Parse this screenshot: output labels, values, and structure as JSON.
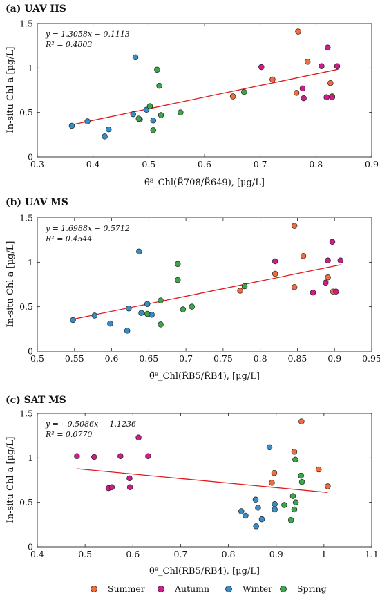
{
  "series_colors": {
    "Summer": "#f26b3a",
    "Autumn": "#d01c8b",
    "Winter": "#3a8cc6",
    "Spring": "#3aa84a"
  },
  "trendline_color": "#e0191b",
  "legend": [
    "Summer",
    "Autumn",
    "Winter",
    "Spring"
  ],
  "chart_data": [
    {
      "type": "scatter",
      "title": "(a) UAV HS",
      "ylabel": "In-situ Chl a [μg/L]",
      "xlabel": "θ̃⁸_Chl(R̃708/R̃649), [μg/L]",
      "xlim": [
        0.3,
        0.9
      ],
      "ylim": [
        0,
        1.5
      ],
      "xticks": [
        "0.3",
        "0.4",
        "0.5",
        "0.6",
        "0.7",
        "0.8",
        "0.9"
      ],
      "yticks": [
        "0",
        "0.5",
        "1",
        "1.5"
      ],
      "equation": "y = 1.3058x − 0.1113",
      "r2": "R² = 0.4803",
      "fit": {
        "slope": 1.3058,
        "intercept": -0.1113,
        "x": [
          0.362,
          0.84
        ]
      },
      "series": [
        {
          "name": "Summer",
          "points": [
            [
              0.651,
              0.68
            ],
            [
              0.722,
              0.87
            ],
            [
              0.765,
              0.72
            ],
            [
              0.768,
              1.41
            ],
            [
              0.785,
              1.07
            ],
            [
              0.826,
              0.83
            ],
            [
              0.829,
              0.68
            ]
          ]
        },
        {
          "name": "Autumn",
          "points": [
            [
              0.702,
              1.01
            ],
            [
              0.776,
              0.77
            ],
            [
              0.778,
              0.66
            ],
            [
              0.81,
              1.02
            ],
            [
              0.819,
              0.67
            ],
            [
              0.821,
              1.23
            ],
            [
              0.829,
              0.67
            ],
            [
              0.838,
              1.02
            ]
          ]
        },
        {
          "name": "Winter",
          "points": [
            [
              0.362,
              0.35
            ],
            [
              0.39,
              0.4
            ],
            [
              0.421,
              0.23
            ],
            [
              0.428,
              0.31
            ],
            [
              0.472,
              0.48
            ],
            [
              0.476,
              1.12
            ],
            [
              0.484,
              0.42
            ],
            [
              0.496,
              0.53
            ],
            [
              0.508,
              0.41
            ]
          ]
        },
        {
          "name": "Spring",
          "points": [
            [
              0.482,
              0.43
            ],
            [
              0.502,
              0.57
            ],
            [
              0.508,
              0.3
            ],
            [
              0.515,
              0.98
            ],
            [
              0.519,
              0.8
            ],
            [
              0.522,
              0.47
            ],
            [
              0.557,
              0.5
            ],
            [
              0.671,
              0.73
            ]
          ]
        }
      ]
    },
    {
      "type": "scatter",
      "title": "(b) UAV MS",
      "ylabel": "In-situ Chl a [μg/L]",
      "xlabel": "θ̃⁸_Chl(R̃B5/R̃B4), [μg/L]",
      "xlim": [
        0.5,
        0.95
      ],
      "ylim": [
        0,
        1.5
      ],
      "xticks": [
        "0.5",
        "0.55",
        "0.6",
        "0.65",
        "0.7",
        "0.75",
        "0.8",
        "0.85",
        "0.9",
        "0.95"
      ],
      "yticks": [
        "0",
        "0.5",
        "1",
        "1.5"
      ],
      "equation": "y = 1.6988x − 0.5712",
      "r2": "R² = 0.4544",
      "fit": {
        "slope": 1.6988,
        "intercept": -0.5712,
        "x": [
          0.548,
          0.908
        ]
      },
      "series": [
        {
          "name": "Summer",
          "points": [
            [
              0.773,
              0.68
            ],
            [
              0.82,
              0.87
            ],
            [
              0.846,
              0.72
            ],
            [
              0.846,
              1.41
            ],
            [
              0.858,
              1.07
            ],
            [
              0.891,
              0.83
            ],
            [
              0.898,
              0.67
            ]
          ]
        },
        {
          "name": "Autumn",
          "points": [
            [
              0.82,
              1.01
            ],
            [
              0.871,
              0.66
            ],
            [
              0.888,
              0.77
            ],
            [
              0.891,
              1.02
            ],
            [
              0.897,
              1.23
            ],
            [
              0.902,
              0.67
            ],
            [
              0.908,
              1.02
            ]
          ]
        },
        {
          "name": "Winter",
          "points": [
            [
              0.548,
              0.35
            ],
            [
              0.577,
              0.4
            ],
            [
              0.598,
              0.31
            ],
            [
              0.621,
              0.23
            ],
            [
              0.623,
              0.48
            ],
            [
              0.637,
              1.12
            ],
            [
              0.64,
              0.43
            ],
            [
              0.648,
              0.53
            ],
            [
              0.654,
              0.41
            ]
          ]
        },
        {
          "name": "Spring",
          "points": [
            [
              0.648,
              0.42
            ],
            [
              0.666,
              0.57
            ],
            [
              0.666,
              0.3
            ],
            [
              0.689,
              0.98
            ],
            [
              0.689,
              0.8
            ],
            [
              0.696,
              0.47
            ],
            [
              0.708,
              0.5
            ],
            [
              0.779,
              0.73
            ]
          ]
        }
      ]
    },
    {
      "type": "scatter",
      "title": "(c) SAT MS",
      "ylabel": "In-situ Chl a [μg/L]",
      "xlabel": "θ⁸_Chl(RB5/RB4), [μg/L]",
      "xlim": [
        0.4,
        1.1
      ],
      "ylim": [
        0,
        1.5
      ],
      "xticks": [
        "0.4",
        "0.5",
        "0.6",
        "0.7",
        "0.8",
        "0.9",
        "1",
        "1.1"
      ],
      "yticks": [
        "0",
        "0.5",
        "1",
        "1.5"
      ],
      "equation": "y = −0.5086x + 1.1236",
      "r2": "R² = 0.0770",
      "fit": {
        "slope": -0.5086,
        "intercept": 1.1236,
        "x": [
          0.483,
          1.008
        ]
      },
      "series": [
        {
          "name": "Summer",
          "points": [
            [
              0.891,
              0.72
            ],
            [
              0.896,
              0.83
            ],
            [
              0.938,
              1.07
            ],
            [
              0.953,
              1.41
            ],
            [
              0.989,
              0.87
            ],
            [
              1.008,
              0.68
            ]
          ]
        },
        {
          "name": "Autumn",
          "points": [
            [
              0.483,
              1.02
            ],
            [
              0.519,
              1.01
            ],
            [
              0.549,
              0.66
            ],
            [
              0.556,
              0.67
            ],
            [
              0.574,
              1.02
            ],
            [
              0.593,
              0.77
            ],
            [
              0.594,
              0.67
            ],
            [
              0.612,
              1.23
            ],
            [
              0.632,
              1.02
            ]
          ]
        },
        {
          "name": "Winter",
          "points": [
            [
              0.827,
              0.4
            ],
            [
              0.836,
              0.35
            ],
            [
              0.857,
              0.53
            ],
            [
              0.858,
              0.23
            ],
            [
              0.862,
              0.44
            ],
            [
              0.87,
              0.31
            ],
            [
              0.886,
              1.12
            ],
            [
              0.897,
              0.48
            ],
            [
              0.897,
              0.42
            ]
          ]
        },
        {
          "name": "Spring",
          "points": [
            [
              0.917,
              0.47
            ],
            [
              0.931,
              0.3
            ],
            [
              0.935,
              0.57
            ],
            [
              0.938,
              0.42
            ],
            [
              0.94,
              0.98
            ],
            [
              0.941,
              0.5
            ],
            [
              0.952,
              0.8
            ],
            [
              0.954,
              0.73
            ]
          ]
        }
      ]
    }
  ]
}
